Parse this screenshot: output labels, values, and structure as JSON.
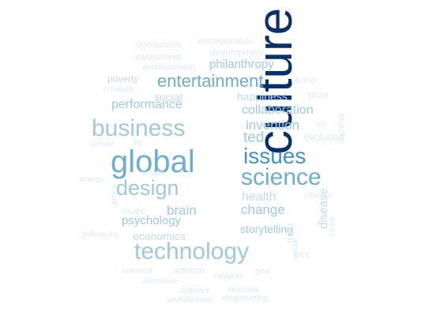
{
  "colors": {
    "darkest": "#08306b",
    "dark": "#2171b5",
    "mid": "#4292c6",
    "light": "#6baed6",
    "lighter": "#9ecae1",
    "pale": "#c6dbef",
    "faint": "#deebf7"
  },
  "words": [
    {
      "text": "culture"
    },
    {
      "text": "global"
    },
    {
      "text": "science"
    },
    {
      "text": "technology"
    },
    {
      "text": "business"
    },
    {
      "text": "design"
    },
    {
      "text": "issues"
    },
    {
      "text": "entertainment"
    },
    {
      "text": "ted"
    },
    {
      "text": "invention"
    },
    {
      "text": "collaboration"
    },
    {
      "text": "performance"
    },
    {
      "text": "change"
    },
    {
      "text": "health"
    },
    {
      "text": "brain"
    },
    {
      "text": "psychology"
    },
    {
      "text": "storytelling"
    },
    {
      "text": "economics"
    },
    {
      "text": "philanthropy"
    },
    {
      "text": "social"
    },
    {
      "text": "happiness"
    },
    {
      "text": "evolution"
    },
    {
      "text": "disease"
    },
    {
      "text": "trust"
    },
    {
      "text": "poverty"
    },
    {
      "text": "entrepreneur"
    },
    {
      "text": "opensource"
    },
    {
      "text": "development"
    },
    {
      "text": "investment"
    },
    {
      "text": "environment"
    },
    {
      "text": "demo"
    },
    {
      "text": "creativity"
    },
    {
      "text": "prize"
    },
    {
      "text": "art"
    },
    {
      "text": "climate"
    },
    {
      "text": "cognitive"
    },
    {
      "text": "energy"
    },
    {
      "text": "choice"
    },
    {
      "text": "africa"
    },
    {
      "text": "music"
    },
    {
      "text": "future"
    },
    {
      "text": "philosophy"
    },
    {
      "text": "media"
    },
    {
      "text": "care"
    },
    {
      "text": "activism"
    },
    {
      "text": "god"
    },
    {
      "text": "potential"
    },
    {
      "text": "religion"
    },
    {
      "text": "alternative"
    },
    {
      "text": "software"
    },
    {
      "text": "industrial"
    },
    {
      "text": "wunderkind"
    },
    {
      "text": "engineering"
    },
    {
      "text": "life"
    },
    {
      "text": "design"
    }
  ]
}
